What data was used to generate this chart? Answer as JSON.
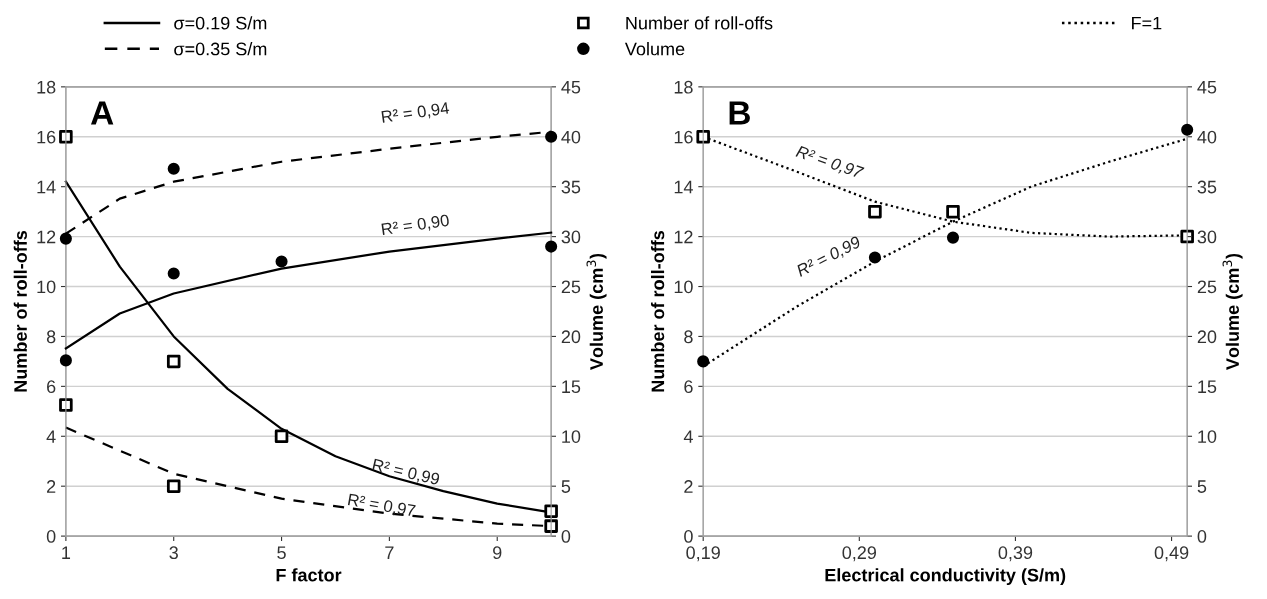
{
  "chart_data": [
    {
      "type": "line",
      "xlabel": "F factor",
      "ylabel": "Number of roll-offs",
      "y2label": "Volume (cm$^{3}$)",
      "xlim": [
        1,
        10
      ],
      "xticks": [
        1,
        3,
        5,
        7,
        9
      ],
      "ylim": [
        0,
        18
      ],
      "yticks": [
        0,
        2,
        4,
        6,
        8,
        10,
        12,
        14,
        16,
        18
      ],
      "y2lim": [
        0,
        45
      ],
      "y2ticks": [
        0,
        5,
        10,
        15,
        20,
        25,
        30,
        35,
        40,
        45
      ],
      "grid": "y",
      "legend": "top",
      "annotations": [
        "A",
        "R² = 0,94",
        "R² = 0,90",
        "R² = 0,99",
        "R² = 0,97"
      ],
      "series": [
        {
          "name": "σ=0.19 S/m",
          "line_style": "solid",
          "color": "#000000",
          "x": [
            1,
            2,
            3,
            4,
            5,
            6,
            7,
            8,
            9,
            10
          ],
          "values": [
            14.2,
            10.8,
            8.0,
            5.9,
            4.3,
            3.2,
            2.4,
            1.8,
            1.3,
            0.95
          ]
        },
        {
          "name": "σ=0.35 S/m",
          "line_style": "dashed",
          "color": "#000000",
          "x": [
            1,
            3,
            5,
            7,
            9,
            10
          ],
          "values": [
            4.35,
            2.5,
            1.5,
            0.9,
            0.5,
            0.4
          ]
        },
        {
          "line_style": "solid",
          "color": "#000000",
          "axis": "y2",
          "x": [
            1,
            2,
            3,
            5,
            7,
            9,
            10
          ],
          "values": [
            18.8,
            22.3,
            24.3,
            26.8,
            28.5,
            29.8,
            30.4
          ]
        },
        {
          "line_style": "dashed",
          "color": "#000000",
          "axis": "y2",
          "x": [
            1,
            2,
            3,
            5,
            7,
            9,
            10
          ],
          "values": [
            30.3,
            33.8,
            35.5,
            37.5,
            38.8,
            40.0,
            40.5
          ]
        },
        {
          "name": "Number of roll-offs",
          "type": "scatter",
          "marker": "square",
          "color": "#000000",
          "x": [
            1,
            3,
            5,
            10,
            1,
            3,
            10
          ],
          "values": [
            16,
            7,
            4,
            1,
            5.25,
            2,
            0.4
          ]
        },
        {
          "name": "Volume",
          "type": "scatter",
          "marker": "circle",
          "color": "#000000",
          "axis": "y2",
          "x": [
            1,
            3,
            5,
            10,
            1,
            3,
            10
          ],
          "values": [
            17.6,
            26.3,
            27.5,
            29.0,
            29.8,
            36.8,
            40.0
          ]
        }
      ]
    },
    {
      "type": "line",
      "xlabel": "Electrical conductivity (S/m)",
      "ylabel": "Number of roll-offs",
      "y2label": "Volume (cm$^{3}$)",
      "xlim": [
        0.19,
        0.5
      ],
      "xticks": [
        {
          "value": 0.19,
          "label": "0,19"
        },
        {
          "value": 0.29,
          "label": "0,29"
        },
        {
          "value": 0.39,
          "label": "0,39"
        },
        {
          "value": 0.49,
          "label": "0,49"
        }
      ],
      "ylim": [
        0,
        18
      ],
      "yticks": [
        0,
        2,
        4,
        6,
        8,
        10,
        12,
        14,
        16,
        18
      ],
      "y2lim": [
        0,
        45
      ],
      "y2ticks": [
        0,
        5,
        10,
        15,
        20,
        25,
        30,
        35,
        40,
        45
      ],
      "grid": "y",
      "legend": "top right",
      "annotations": [
        "B",
        "R² = 0,97",
        "R² = 0,99"
      ],
      "series": [
        {
          "name": "F=1",
          "line_style": "dotted",
          "color": "#000000",
          "x": [
            0.19,
            0.25,
            0.3,
            0.35,
            0.4,
            0.45,
            0.5
          ],
          "values": [
            16,
            14.6,
            13.4,
            12.6,
            12.15,
            12.0,
            12.05
          ]
        },
        {
          "line_style": "dotted",
          "color": "#000000",
          "axis": "y2",
          "x": [
            0.19,
            0.25,
            0.3,
            0.35,
            0.4,
            0.45,
            0.5
          ],
          "values": [
            17.0,
            23.0,
            27.5,
            31.5,
            35.0,
            37.5,
            39.8
          ]
        },
        {
          "type": "scatter",
          "marker": "square",
          "color": "#000000",
          "x": [
            0.19,
            0.3,
            0.35,
            0.5
          ],
          "values": [
            16,
            13,
            13,
            12
          ]
        },
        {
          "type": "scatter",
          "marker": "circle",
          "color": "#000000",
          "axis": "y2",
          "x": [
            0.19,
            0.3,
            0.35,
            0.5
          ],
          "values": [
            17.5,
            27.9,
            29.9,
            40.7
          ]
        }
      ]
    }
  ]
}
